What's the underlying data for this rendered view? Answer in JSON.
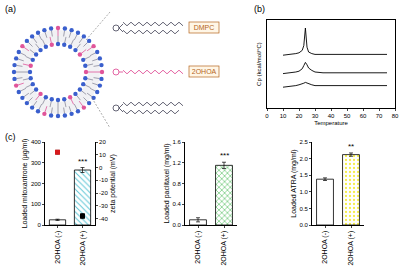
{
  "panel_labels": [
    "(a)",
    "(b)",
    "(c)"
  ],
  "diagram": {
    "labels": [
      "DMPC",
      "2OHOA"
    ]
  },
  "chart_data": [
    {
      "type": "line",
      "x_label": "Temperature",
      "y_label": "Cp (kcal/mol/°C)",
      "x": [
        10,
        15,
        18,
        20,
        22,
        23,
        24,
        25,
        26,
        28,
        30,
        35,
        40,
        50,
        60,
        70,
        75
      ],
      "series": [
        {
          "color": "#000000",
          "values": [
            6.6,
            6.7,
            6.8,
            6.9,
            7.2,
            7.8,
            10.0,
            7.6,
            7.0,
            6.8,
            6.7,
            6.7,
            6.7,
            6.7,
            6.7,
            6.7,
            6.7
          ]
        },
        {
          "color": "#000000",
          "values": [
            4.3,
            4.4,
            4.5,
            4.6,
            4.9,
            5.3,
            5.7,
            5.4,
            5.0,
            4.7,
            4.5,
            4.4,
            4.4,
            4.4,
            4.4,
            4.4,
            4.4
          ]
        },
        {
          "color": "#000000",
          "values": [
            2.6,
            2.7,
            2.8,
            2.9,
            3.0,
            3.1,
            3.2,
            3.1,
            3.0,
            2.9,
            2.8,
            2.8,
            2.8,
            2.8,
            2.8,
            2.8,
            2.8
          ]
        }
      ],
      "xlim": [
        0,
        80
      ],
      "xticks": [
        0,
        10,
        20,
        30,
        40,
        50,
        60,
        70,
        80
      ],
      "ylim": [
        0,
        11
      ],
      "tick_labels": "x"
    },
    {
      "type": "bar",
      "categories": [
        "2OHOA (-)",
        "2OHOA (+)"
      ],
      "y_label": "Loaded mitoxantrone (μg/ml)",
      "y2_label": "zeta potential (mV)",
      "series": [
        {
          "type": "bar",
          "values": [
            25,
            265
          ],
          "errors": [
            3,
            12
          ],
          "colors": [
            "#ffffff",
            "#5fc6d6"
          ]
        },
        {
          "type": "scatter",
          "axis": "y2",
          "marker": "square",
          "values": [
            12,
            -38
          ],
          "errors": [
            1.5,
            2
          ],
          "colors": [
            "#d7191c",
            "#000000"
          ]
        }
      ],
      "ylim": [
        0,
        400
      ],
      "yticks": [
        0,
        100,
        200,
        300,
        400
      ],
      "y2lim": [
        -45,
        20
      ],
      "y2ticks": [
        20,
        10,
        0,
        -10,
        -20,
        -30,
        -40
      ],
      "annotations": [
        {
          "x": "2OHOA (+)",
          "text": "***"
        }
      ]
    },
    {
      "type": "bar",
      "categories": [
        "2OHOA (-)",
        "2OHOA (+)"
      ],
      "y_label": "Loaded paclitaxel (mg/ml)",
      "series": [
        {
          "type": "bar",
          "values": [
            0.1,
            1.15
          ],
          "errors": [
            0.04,
            0.06
          ],
          "colors": [
            "#ffffff",
            "#3cb54a"
          ]
        }
      ],
      "ylim": [
        0,
        1.6
      ],
      "yticks": [
        {
          "value": 0,
          "label": "0.0"
        },
        0.4,
        0.8,
        1.2,
        1.6
      ],
      "annotations": [
        {
          "x": "2OHOA (+)",
          "text": "***"
        }
      ]
    },
    {
      "type": "bar",
      "categories": [
        "2OHOA (-)",
        "2OHOA (+)"
      ],
      "y_label": "Loaded ATRA (mg/ml)",
      "series": [
        {
          "type": "bar",
          "values": [
            1.38,
            2.12
          ],
          "errors": [
            0.04,
            0.05
          ],
          "colors": [
            "#ffffff",
            "#f5ee4a"
          ]
        }
      ],
      "ylim": [
        0,
        2.5
      ],
      "yticks": [
        {
          "value": 0,
          "label": "0.0"
        },
        0.5,
        {
          "value": 1,
          "label": "1.0"
        },
        1.5,
        {
          "value": 2,
          "label": "2.0"
        },
        2.5
      ],
      "annotations": [
        {
          "x": "2OHOA (+)",
          "text": "**"
        }
      ]
    }
  ]
}
